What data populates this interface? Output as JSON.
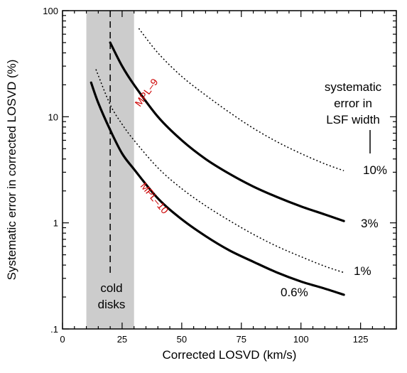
{
  "chart_data": {
    "type": "line",
    "xlabel": "Corrected LOSVD   (km/s)",
    "ylabel": "Systematic error in corrected LOSVD   (%)",
    "xlim": [
      0,
      140
    ],
    "ylim": [
      0.1,
      100
    ],
    "y_scale": "log",
    "x_ticks": [
      0,
      25,
      50,
      75,
      100,
      125
    ],
    "x_tick_labels": [
      "0",
      "25",
      "50",
      "75",
      "100",
      "125"
    ],
    "y_ticks": [
      0.1,
      1,
      10,
      100
    ],
    "y_tick_labels": [
      ".1",
      "1",
      "10",
      "100"
    ],
    "shaded_region": {
      "x": [
        10,
        30
      ],
      "color": "#cccccc"
    },
    "vertical_line": {
      "x": 20,
      "style": "dashed"
    },
    "series": [
      {
        "name": "MPL–9",
        "style": "solid",
        "x": [
          20,
          25,
          30,
          40,
          50,
          60,
          70,
          80,
          90,
          100,
          110,
          118
        ],
        "y": [
          50,
          30,
          20,
          10,
          6,
          4,
          2.9,
          2.2,
          1.75,
          1.43,
          1.2,
          1.04
        ]
      },
      {
        "name": "MPL–10",
        "style": "solid",
        "x": [
          12,
          15,
          20,
          25,
          30,
          40,
          50,
          60,
          70,
          80,
          90,
          100,
          110,
          118
        ],
        "y": [
          21,
          13.5,
          7.5,
          4.5,
          3.2,
          1.7,
          1.08,
          0.75,
          0.55,
          0.43,
          0.34,
          0.28,
          0.24,
          0.21
        ]
      },
      {
        "name": "10%",
        "style": "dotted",
        "x": [
          32,
          40,
          50,
          60,
          70,
          80,
          90,
          100,
          110,
          118
        ],
        "y": [
          68,
          40,
          24,
          16,
          11,
          7.8,
          5.8,
          4.5,
          3.6,
          3.1
        ]
      },
      {
        "name": "1%",
        "style": "dotted",
        "x": [
          14,
          20,
          25,
          30,
          40,
          50,
          60,
          70,
          80,
          90,
          100,
          110,
          118
        ],
        "y": [
          28,
          13,
          8.5,
          6,
          3.3,
          2.1,
          1.45,
          1.05,
          0.78,
          0.6,
          0.48,
          0.39,
          0.34
        ]
      }
    ],
    "annotations": {
      "series_label_mpl9": "MPL–9",
      "series_label_mpl10": "MPL–10",
      "label_10pct": "10%",
      "label_3pct": "3%",
      "label_1pct": "1%",
      "label_06pct": "0.6%",
      "cold_disks_line1": "cold",
      "cold_disks_line2": "disks",
      "legend_line1": "systematic",
      "legend_line2": "error in",
      "legend_line3": "LSF width"
    },
    "colors": {
      "series_label": "#cc0000",
      "shade": "#cccccc"
    },
    "grid": false
  }
}
